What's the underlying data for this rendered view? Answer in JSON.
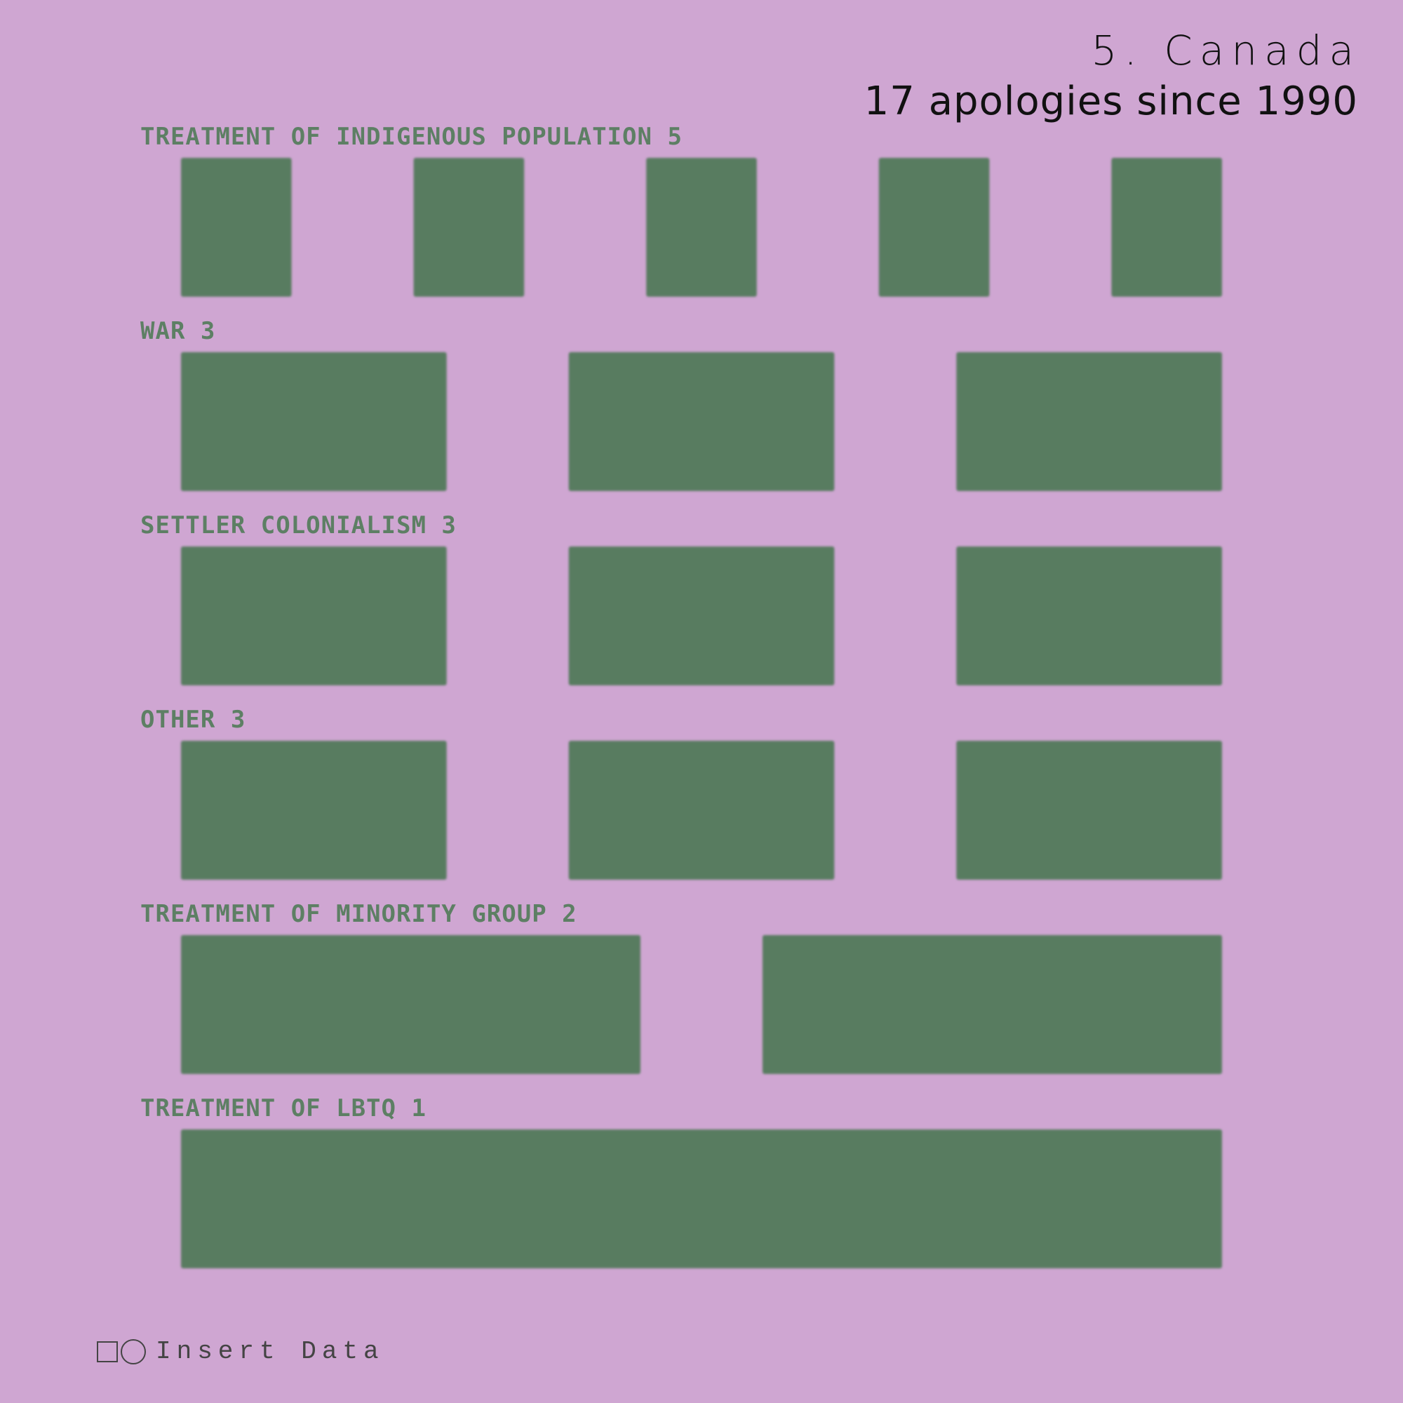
{
  "header": {
    "title": "5. Canada",
    "subtitle": "17 apologies since 1990"
  },
  "colors": {
    "background": "#cfa6d2",
    "block": "#587b60",
    "label": "#5d7f64",
    "title": "#111111"
  },
  "chart_data": {
    "type": "bar",
    "title": "5. Canada",
    "subtitle": "17 apologies since 1990",
    "total": 17,
    "categories": [
      "TREATMENT OF INDIGENOUS POPULATION",
      "WAR",
      "SETTLER COLONIALISM",
      "OTHER",
      "TREATMENT OF MINORITY GROUP",
      "TREATMENT OF LBTQ"
    ],
    "values": [
      5,
      3,
      3,
      3,
      2,
      1
    ],
    "labels": [
      "TREATMENT OF INDIGENOUS POPULATION 5",
      "WAR 3",
      "SETTLER COLONIALISM 3",
      "OTHER 3",
      "TREATMENT OF MINORITY GROUP 2",
      "TREATMENT OF LBTQ 1"
    ],
    "encoding": "one block per apology, grouped in rows by category",
    "grid": false
  },
  "footer": {
    "brand_text": "Insert Data",
    "icons": [
      "square-icon",
      "circle-icon"
    ]
  }
}
